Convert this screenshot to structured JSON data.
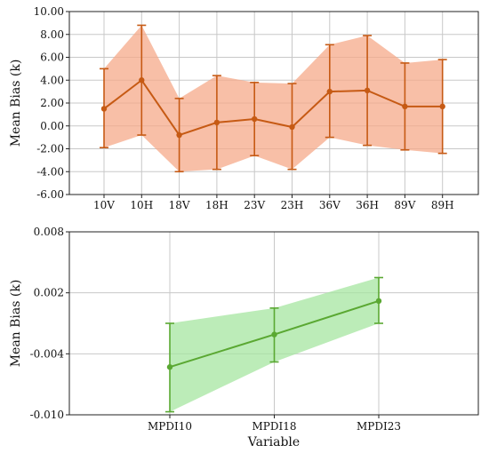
{
  "colors": {
    "top_line": "#c65a14",
    "top_fill": "#f6a98a",
    "bottom_line": "#5aa832",
    "bottom_fill": "#a6e6a0",
    "grid": "#c8c8c8"
  },
  "chart_data": [
    {
      "type": "line",
      "ylabel": "Mean Bias (k)",
      "xlabel": "",
      "categories": [
        "10V",
        "10H",
        "18V",
        "18H",
        "23V",
        "23H",
        "36V",
        "36H",
        "89V",
        "89H"
      ],
      "ylim": [
        -6.0,
        10.0
      ],
      "yticks": [
        10.0,
        8.0,
        6.0,
        4.0,
        2.0,
        0.0,
        -2.0,
        -4.0,
        -6.0
      ],
      "ytick_labels": [
        "10.00",
        "8.00",
        "6.00",
        "4.00",
        "2.00",
        "0.00",
        "-2.00",
        "-4.00",
        "-6.00"
      ],
      "grid": true,
      "series": [
        {
          "values": [
            1.5,
            4.0,
            -0.8,
            0.3,
            0.6,
            -0.1,
            3.0,
            3.1,
            1.7,
            1.7
          ],
          "upper": [
            5.0,
            8.8,
            2.4,
            4.4,
            3.8,
            3.7,
            7.1,
            7.9,
            5.5,
            5.8
          ],
          "lower": [
            -1.9,
            -0.8,
            -4.0,
            -3.8,
            -2.6,
            -3.8,
            -1.0,
            -1.7,
            -2.1,
            -2.4
          ]
        }
      ]
    },
    {
      "type": "line",
      "ylabel": "Mean Bias (k)",
      "xlabel": "Variable",
      "categories": [
        "MPDI10",
        "MPDI18",
        "MPDI23"
      ],
      "ylim": [
        -0.01,
        0.008
      ],
      "yticks": [
        0.008,
        0.002,
        -0.004,
        -0.01
      ],
      "ytick_labels": [
        "0.008",
        "0.002",
        "-0.004",
        "-0.010"
      ],
      "grid": true,
      "series": [
        {
          "values": [
            -0.0053,
            -0.0021,
            0.0012
          ],
          "upper": [
            -0.001,
            0.0005,
            0.0035
          ],
          "lower": [
            -0.0097,
            -0.0048,
            -0.001
          ]
        }
      ]
    }
  ]
}
